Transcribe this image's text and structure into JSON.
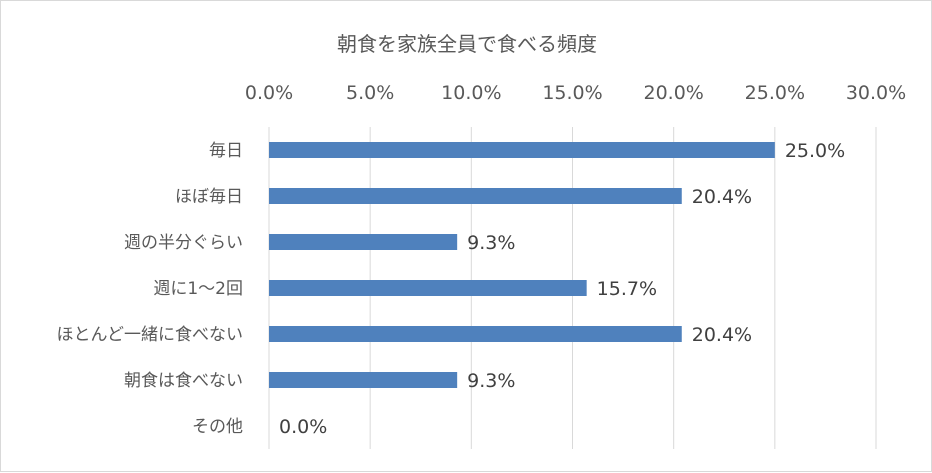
{
  "chart_data": {
    "type": "bar",
    "orientation": "horizontal",
    "title": "朝食を家族全員で食べる頻度",
    "categories": [
      "毎日",
      "ほぼ毎日",
      "週の半分ぐらい",
      "週に1～2回",
      "ほとんど一緒に食べない",
      "朝食は食べない",
      "その他"
    ],
    "values": [
      25.0,
      20.4,
      9.3,
      15.7,
      20.4,
      9.3,
      0.0
    ],
    "data_labels": [
      "25.0%",
      "20.4%",
      "9.3%",
      "15.7%",
      "20.4%",
      "9.3%",
      "0.0%"
    ],
    "x_ticks": [
      "0.0%",
      "5.0%",
      "10.0%",
      "15.0%",
      "20.0%",
      "25.0%",
      "30.0%"
    ],
    "xlim": [
      0,
      30
    ],
    "x_axis_position": "top",
    "grid": true,
    "legend": "none",
    "bar_color": "#4f81bd"
  }
}
